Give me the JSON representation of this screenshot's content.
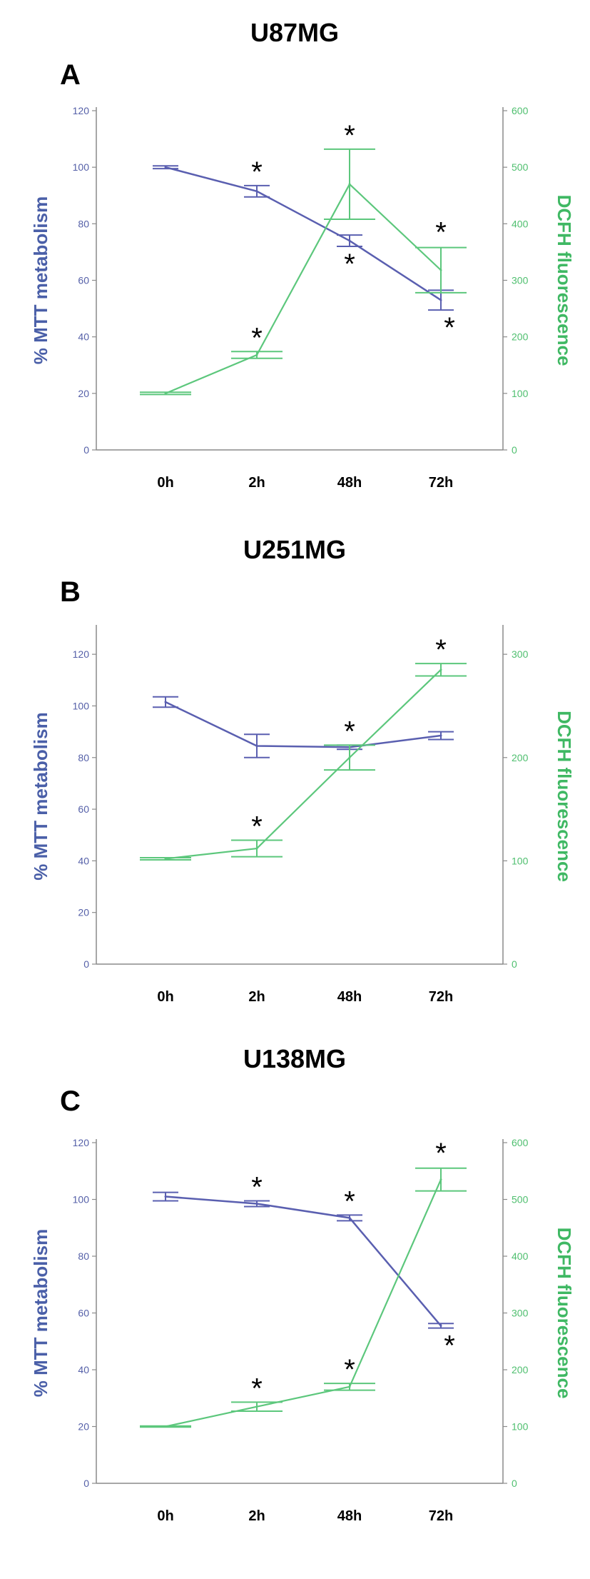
{
  "colors": {
    "mtt": "#5a5fb0",
    "dcfh": "#5cc77c",
    "mtt_label": "#4a5fa8",
    "dcfh_label": "#3fb863",
    "axis": "#8a8a8a"
  },
  "chart_data": [
    {
      "type": "line",
      "title": "U87MG",
      "panel_letter": "A",
      "categories": [
        "0h",
        "2h",
        "48h",
        "72h"
      ],
      "ylabel": "% MTT metabolism",
      "y2label": "DCFH fluorescence",
      "ylim": [
        0,
        120
      ],
      "y2lim": [
        0,
        600
      ],
      "yticks": [
        0,
        20,
        40,
        60,
        80,
        100,
        120
      ],
      "y2ticks": [
        0,
        100,
        200,
        300,
        400,
        500,
        600
      ],
      "series": [
        {
          "axis": "left",
          "values": [
            100,
            91.5,
            74,
            53
          ],
          "err": [
            0.5,
            2,
            2,
            3.5
          ],
          "stars": [
            false,
            true,
            true,
            true
          ]
        },
        {
          "axis": "right",
          "values": [
            100,
            168,
            470,
            318
          ],
          "err": [
            2,
            6,
            62,
            40
          ],
          "stars": [
            false,
            true,
            true,
            true
          ]
        }
      ]
    },
    {
      "type": "line",
      "title": "U251MG",
      "panel_letter": "B",
      "categories": [
        "0h",
        "2h",
        "48h",
        "72h"
      ],
      "ylabel": "% MTT metabolism",
      "y2label": "DCFH fluorescence",
      "ylim": [
        0,
        130
      ],
      "y2lim": [
        0,
        325
      ],
      "yticks": [
        0,
        20,
        40,
        60,
        80,
        100,
        120
      ],
      "y2ticks": [
        0,
        100,
        200,
        300
      ],
      "series": [
        {
          "axis": "left",
          "values": [
            101.5,
            84.5,
            84,
            88.5
          ],
          "err": [
            2,
            4.5,
            0.8,
            1.5
          ],
          "stars": [
            false,
            false,
            false,
            false
          ]
        },
        {
          "axis": "right",
          "values": [
            102,
            112,
            200,
            285
          ],
          "err": [
            1,
            8,
            12,
            6
          ],
          "stars": [
            false,
            true,
            true,
            true
          ]
        }
      ]
    },
    {
      "type": "line",
      "title": "U138MG",
      "panel_letter": "C",
      "categories": [
        "0h",
        "2h",
        "48h",
        "72h"
      ],
      "ylabel": "% MTT metabolism",
      "y2label": "DCFH fluorescence",
      "ylim": [
        0,
        120
      ],
      "y2lim": [
        0,
        600
      ],
      "yticks": [
        0,
        20,
        40,
        60,
        80,
        100,
        120
      ],
      "y2ticks": [
        0,
        100,
        200,
        300,
        400,
        500,
        600
      ],
      "series": [
        {
          "axis": "left",
          "values": [
            101,
            98.5,
            93.5,
            55.5
          ],
          "err": [
            1.5,
            1,
            1,
            0.8
          ],
          "stars": [
            false,
            true,
            true,
            true
          ]
        },
        {
          "axis": "right",
          "values": [
            100,
            135,
            170,
            535
          ],
          "err": [
            1,
            8,
            6,
            20
          ],
          "stars": [
            false,
            true,
            true,
            true
          ]
        }
      ]
    }
  ]
}
